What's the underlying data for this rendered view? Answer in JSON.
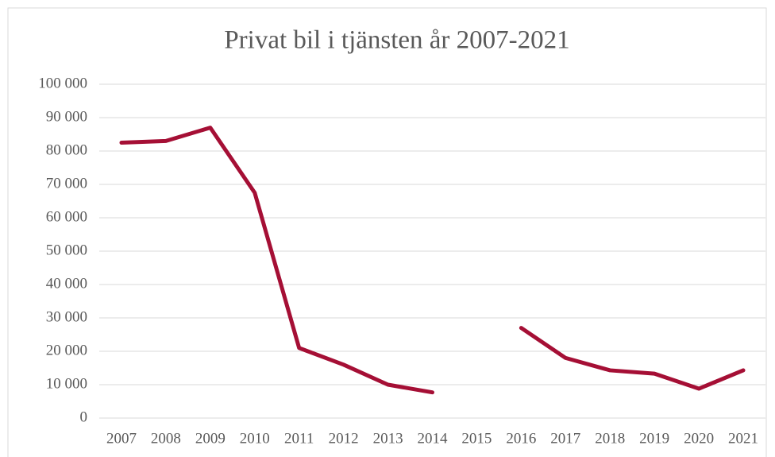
{
  "chart_data": {
    "type": "line",
    "title": "Privat bil i tjänsten år 2007-2021",
    "categories": [
      "2007",
      "2008",
      "2009",
      "2010",
      "2011",
      "2012",
      "2013",
      "2014",
      "2015",
      "2016",
      "2017",
      "2018",
      "2019",
      "2020",
      "2021"
    ],
    "series": [
      {
        "name": "Privat bil i tjänsten",
        "color": "#a50f35",
        "values": [
          82500,
          83000,
          87000,
          67500,
          21000,
          16000,
          10000,
          7700,
          null,
          27000,
          18000,
          14300,
          13300,
          8800,
          14300
        ]
      }
    ],
    "ylim": [
      0,
      100000
    ],
    "yticks": [
      0,
      {
        "value": 10000,
        "label": "10 000"
      },
      {
        "value": 20000,
        "label": "20 000"
      },
      {
        "value": 30000,
        "label": "30 000"
      },
      {
        "value": 40000,
        "label": "40 000"
      },
      {
        "value": 50000,
        "label": "50 000"
      },
      {
        "value": 60000,
        "label": "60 000"
      },
      {
        "value": 70000,
        "label": "70 000"
      },
      {
        "value": 80000,
        "label": "80 000"
      },
      {
        "value": 90000,
        "label": "90 000"
      },
      {
        "value": 100000,
        "label": "100 000"
      }
    ],
    "grid": true
  }
}
